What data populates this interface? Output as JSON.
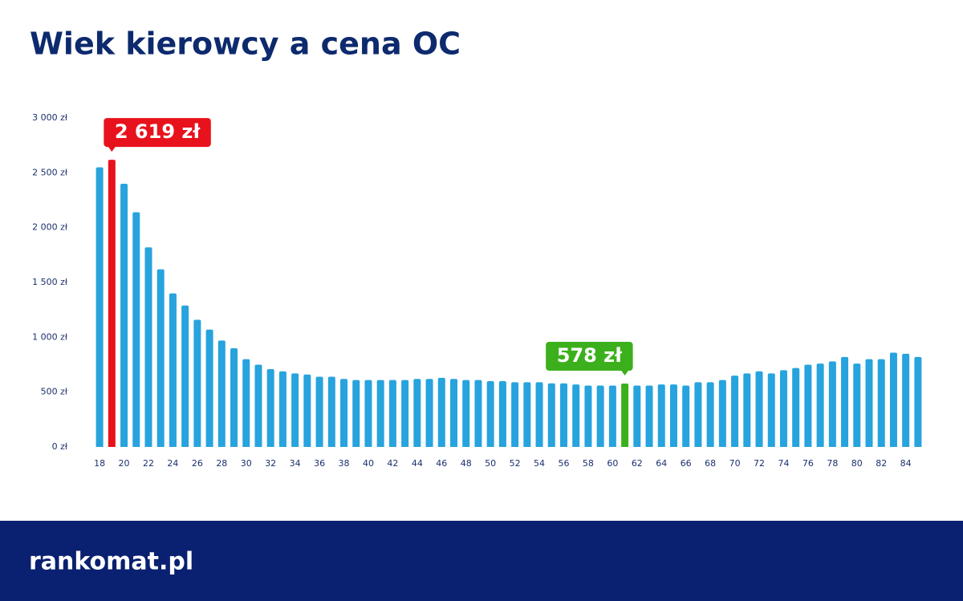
{
  "chart_data": {
    "type": "bar",
    "title": "Wiek kierowcy a cena OC",
    "categories": [
      18,
      null,
      20,
      null,
      22,
      null,
      24,
      null,
      26,
      null,
      28,
      null,
      30,
      null,
      32,
      null,
      34,
      null,
      36,
      null,
      38,
      null,
      40,
      null,
      42,
      null,
      44,
      null,
      46,
      null,
      48,
      null,
      50,
      null,
      52,
      null,
      54,
      null,
      56,
      null,
      58,
      null,
      60,
      null,
      62,
      null,
      64,
      null,
      66,
      null,
      68,
      null,
      70,
      null,
      72,
      null,
      74,
      null,
      76,
      null,
      78,
      null,
      80,
      null,
      82,
      null,
      84,
      null
    ],
    "values": [
      2550,
      2619,
      2400,
      2140,
      1820,
      1620,
      1400,
      1290,
      1160,
      1070,
      970,
      900,
      800,
      750,
      710,
      690,
      670,
      660,
      640,
      640,
      620,
      610,
      610,
      610,
      610,
      610,
      620,
      620,
      630,
      620,
      610,
      610,
      600,
      600,
      590,
      590,
      590,
      580,
      580,
      570,
      560,
      560,
      560,
      578,
      560,
      560,
      570,
      570,
      560,
      590,
      590,
      610,
      650,
      670,
      690,
      670,
      700,
      720,
      750,
      760,
      780,
      820,
      760,
      800,
      800,
      860,
      850,
      820
    ],
    "value_labels": [
      null,
      "2 619 zł",
      null,
      null,
      null,
      null,
      null,
      null,
      null,
      null,
      null,
      null,
      null,
      null,
      null,
      null,
      null,
      null,
      null,
      null,
      null,
      null,
      null,
      null,
      null,
      null,
      null,
      null,
      null,
      null,
      null,
      null,
      null,
      null,
      null,
      null,
      null,
      null,
      null,
      null,
      null,
      null,
      null,
      "578 zł",
      null,
      null,
      null,
      null,
      null,
      null,
      null,
      null,
      null,
      null,
      null,
      null,
      null,
      null,
      null,
      null,
      null,
      null,
      null,
      null,
      null,
      null,
      null,
      null
    ],
    "color": "#27a3dd",
    "colors": [
      "#27a3dd",
      "#e8121c",
      "#27a3dd",
      "#27a3dd",
      "#27a3dd",
      "#27a3dd",
      "#27a3dd",
      "#27a3dd",
      "#27a3dd",
      "#27a3dd",
      "#27a3dd",
      "#27a3dd",
      "#27a3dd",
      "#27a3dd",
      "#27a3dd",
      "#27a3dd",
      "#27a3dd",
      "#27a3dd",
      "#27a3dd",
      "#27a3dd",
      "#27a3dd",
      "#27a3dd",
      "#27a3dd",
      "#27a3dd",
      "#27a3dd",
      "#27a3dd",
      "#27a3dd",
      "#27a3dd",
      "#27a3dd",
      "#27a3dd",
      "#27a3dd",
      "#27a3dd",
      "#27a3dd",
      "#27a3dd",
      "#27a3dd",
      "#27a3dd",
      "#27a3dd",
      "#27a3dd",
      "#27a3dd",
      "#27a3dd",
      "#27a3dd",
      "#27a3dd",
      "#27a3dd",
      "#3cb01c",
      "#27a3dd",
      "#27a3dd",
      "#27a3dd",
      "#27a3dd",
      "#27a3dd",
      "#27a3dd",
      "#27a3dd",
      "#27a3dd",
      "#27a3dd",
      "#27a3dd",
      "#27a3dd",
      "#27a3dd",
      "#27a3dd",
      "#27a3dd",
      "#27a3dd",
      "#27a3dd",
      "#27a3dd",
      "#27a3dd",
      "#27a3dd",
      "#27a3dd",
      "#27a3dd",
      "#27a3dd",
      "#27a3dd",
      "#27a3dd"
    ],
    "ylim": [
      0,
      3000
    ],
    "yticks": [
      {
        "value": 0,
        "label": "0 zł"
      },
      {
        "value": 500,
        "label": "500 zł"
      },
      {
        "value": 1000,
        "label": "1 000 zł"
      },
      {
        "value": 1500,
        "label": "1 500 zł"
      },
      {
        "value": 2000,
        "label": "2 000 zł"
      },
      {
        "value": 2500,
        "label": "2 500 zł"
      },
      {
        "value": 3000,
        "label": "3 000 zł"
      }
    ],
    "grid": false
  },
  "footer": {
    "logo": "rankomat.pl"
  }
}
